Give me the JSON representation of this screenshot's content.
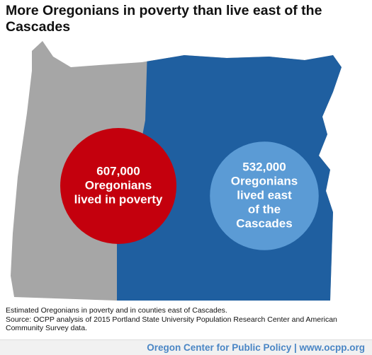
{
  "chart_data": {
    "type": "bubble",
    "title": "More Oregonians in poverty than live east of the Cascades",
    "categories": [
      [
        "Oregonians",
        "lived in poverty"
      ],
      [
        "Oregonians",
        "lived east",
        "of the",
        "Cascades"
      ]
    ],
    "values": [
      607000,
      532000
    ],
    "value_labels": [
      "607,000",
      "532,000"
    ],
    "colors": [
      "#c4000d",
      "#5b9bd5"
    ],
    "map_colors": {
      "west": "#a6a6a6",
      "east": "#1f5fa0"
    },
    "note": "Estimated Oregonians in poverty and in counties east of Cascades.",
    "source": "Source: OCPP analysis of 2015 Portland State University Population Research Center and American Community Survey data.",
    "footer": "Oregon Center for Public Policy | www.ocpp.org"
  }
}
